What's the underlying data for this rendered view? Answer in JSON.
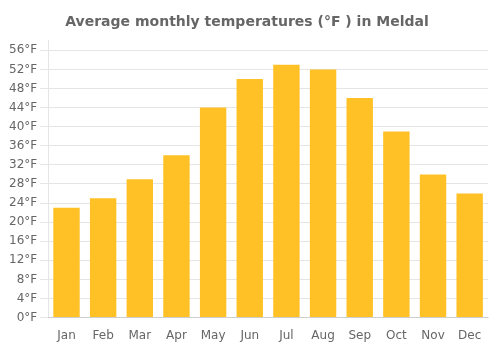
{
  "chart_data": {
    "type": "bar",
    "title": "Average monthly temperatures (°F ) in Meldal",
    "categories": [
      "Jan",
      "Feb",
      "Mar",
      "Apr",
      "May",
      "Jun",
      "Jul",
      "Aug",
      "Sep",
      "Oct",
      "Nov",
      "Dec"
    ],
    "values": [
      23,
      25,
      29,
      34,
      44,
      50,
      53,
      52,
      46,
      39,
      30,
      26
    ],
    "color": "#FFC125",
    "ylim": [
      0,
      58
    ],
    "yticks": [
      {
        "value": 0,
        "label": "0°F"
      },
      {
        "value": 4,
        "label": "4°F"
      },
      {
        "value": 8,
        "label": "8°F"
      },
      {
        "value": 12,
        "label": "12°F"
      },
      {
        "value": 16,
        "label": "16°F"
      },
      {
        "value": 20,
        "label": "20°F"
      },
      {
        "value": 24,
        "label": "24°F"
      },
      {
        "value": 28,
        "label": "28°F"
      },
      {
        "value": 32,
        "label": "32°F"
      },
      {
        "value": 36,
        "label": "36°F"
      },
      {
        "value": 40,
        "label": "40°F"
      },
      {
        "value": 44,
        "label": "44°F"
      },
      {
        "value": 48,
        "label": "48°F"
      },
      {
        "value": 52,
        "label": "52°F"
      },
      {
        "value": 56,
        "label": "56°F"
      }
    ],
    "grid": true
  }
}
